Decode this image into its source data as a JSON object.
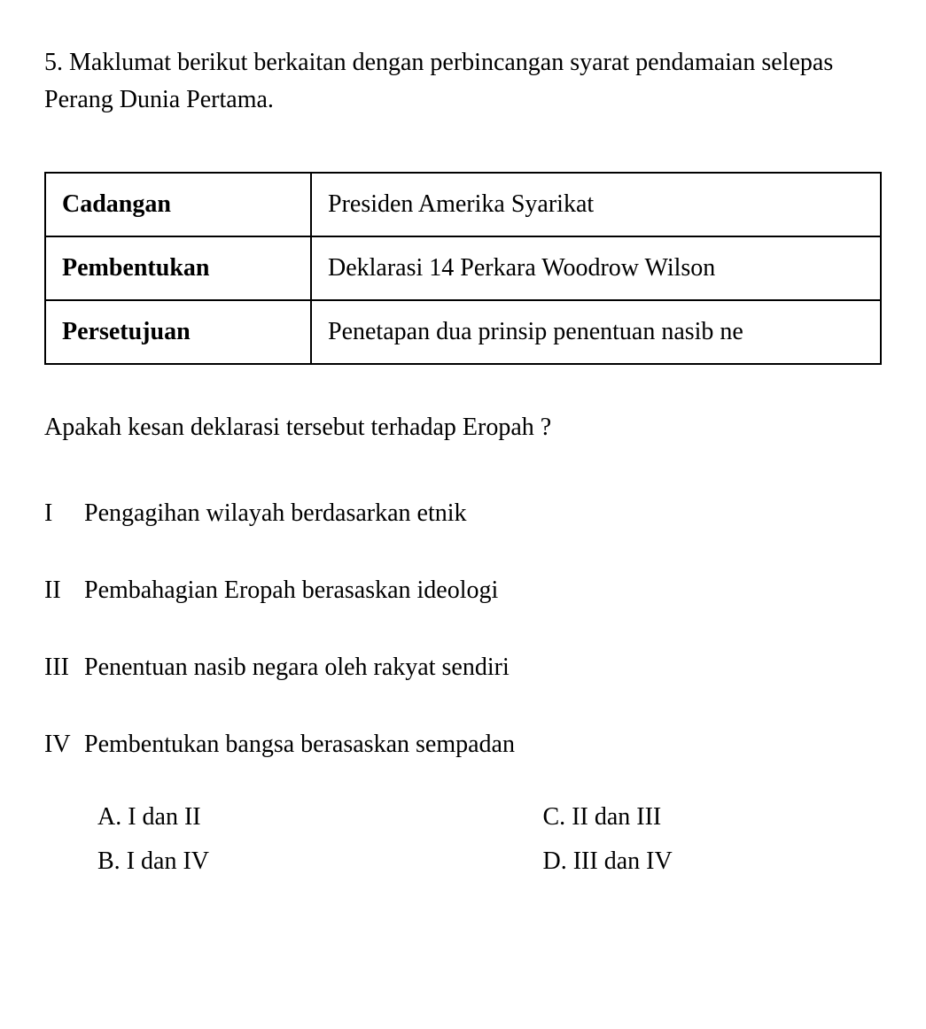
{
  "question": {
    "number": "5.",
    "stem": "Maklumat berikut berkaitan dengan perbincangan syarat pendamaian selepas Perang Dunia Pertama."
  },
  "table": {
    "rows": [
      {
        "label": "Cadangan",
        "value": "Presiden Amerika Syarikat"
      },
      {
        "label": "Pembentukan",
        "value": "Deklarasi 14 Perkara Woodrow Wilson"
      },
      {
        "label": "Persetujuan",
        "value": "Penetapan dua prinsip penentuan nasib ne"
      }
    ]
  },
  "sub_question": "Apakah kesan deklarasi tersebut terhadap Eropah ?",
  "statements": [
    {
      "roman": "I",
      "text": "Pengagihan wilayah berdasarkan etnik"
    },
    {
      "roman": "II",
      "text": "Pembahagian Eropah berasaskan ideologi"
    },
    {
      "roman": "III",
      "text": "Penentuan nasib negara oleh rakyat sendiri"
    },
    {
      "roman": "IV",
      "text": "Pembentukan bangsa berasaskan sempadan"
    }
  ],
  "options": {
    "A": "I dan II",
    "B": "I dan IV",
    "C": "II dan III",
    "D": "III dan IV"
  }
}
